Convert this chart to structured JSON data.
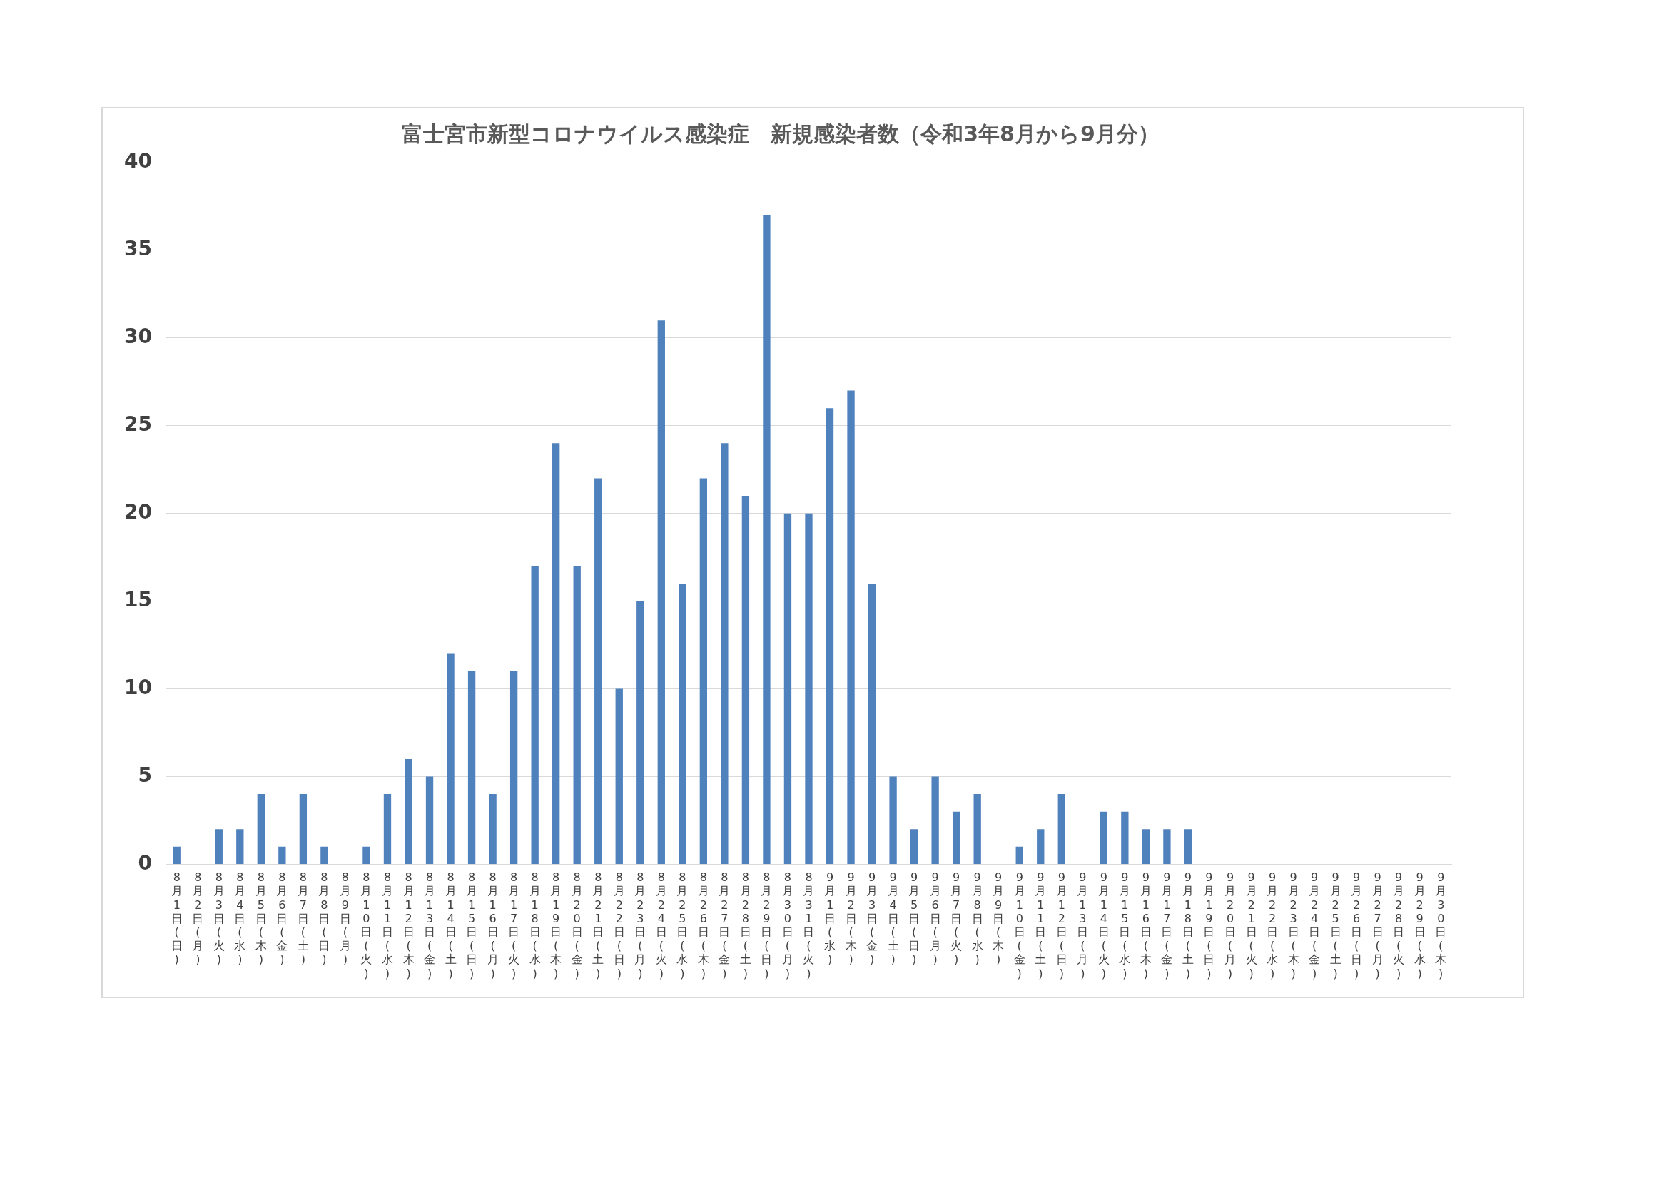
{
  "chart_data": {
    "type": "bar",
    "title": "富士宮市新型コロナウイルス感染症　新規感染者数（令和3年8月から9月分）",
    "categories": [
      "8月1日(日)",
      "8月2日(月)",
      "8月3日(火)",
      "8月4日(水)",
      "8月5日(木)",
      "8月6日(金)",
      "8月7日(土)",
      "8月8日(日)",
      "8月9日(月)",
      "8月10日(火)",
      "8月11日(水)",
      "8月12日(木)",
      "8月13日(金)",
      "8月14日(土)",
      "8月15日(日)",
      "8月16日(月)",
      "8月17日(火)",
      "8月18日(水)",
      "8月19日(木)",
      "8月20日(金)",
      "8月21日(土)",
      "8月22日(日)",
      "8月23日(月)",
      "8月24日(火)",
      "8月25日(水)",
      "8月26日(木)",
      "8月27日(金)",
      "8月28日(土)",
      "8月29日(日)",
      "8月30日(月)",
      "8月31日(火)",
      "9月1日(水)",
      "9月2日(木)",
      "9月3日(金)",
      "9月4日(土)",
      "9月5日(日)",
      "9月6日(月)",
      "9月7日(火)",
      "9月8日(水)",
      "9月9日(木)",
      "9月10日(金)",
      "9月11日(土)",
      "9月12日(日)",
      "9月13日(月)",
      "9月14日(火)",
      "9月15日(水)",
      "9月16日(木)",
      "9月17日(金)",
      "9月18日(土)",
      "9月19日(日)",
      "9月20日(月)",
      "9月21日(火)",
      "9月22日(水)",
      "9月23日(木)",
      "9月24日(金)",
      "9月25日(土)",
      "9月26日(日)",
      "9月27日(月)",
      "9月28日(火)",
      "9月29日(水)",
      "9月30日(木)"
    ],
    "values": [
      1,
      0,
      2,
      2,
      4,
      1,
      4,
      1,
      0,
      1,
      4,
      6,
      5,
      12,
      11,
      4,
      11,
      17,
      24,
      17,
      22,
      10,
      15,
      31,
      16,
      22,
      24,
      21,
      37,
      20,
      20,
      26,
      27,
      16,
      5,
      2,
      5,
      3,
      4,
      0,
      1,
      2,
      4,
      0,
      3,
      3,
      2,
      2,
      2,
      null,
      null,
      null,
      null,
      null,
      null,
      null,
      null,
      null,
      null,
      null,
      null
    ],
    "color": "#4f81bd",
    "ylim": [
      0,
      40
    ],
    "yticks": [
      0,
      5,
      10,
      15,
      20,
      25,
      30,
      35,
      40
    ],
    "grid": "y"
  }
}
